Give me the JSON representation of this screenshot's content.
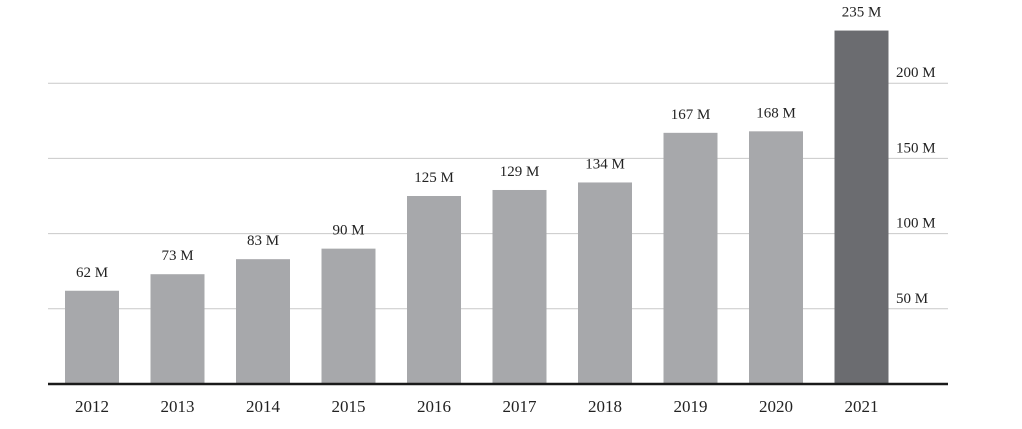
{
  "chart_data": {
    "type": "bar",
    "categories": [
      "2012",
      "2013",
      "2014",
      "2015",
      "2016",
      "2017",
      "2018",
      "2019",
      "2020",
      "2021"
    ],
    "values": [
      62,
      73,
      83,
      90,
      125,
      129,
      134,
      167,
      168,
      235
    ],
    "value_labels": [
      "62 M",
      "73 M",
      "83 M",
      "90 M",
      "125 M",
      "129 M",
      "134 M",
      "167 M",
      "168 M",
      "235 M"
    ],
    "title": "",
    "xlabel": "",
    "ylabel": "",
    "ylim": [
      0,
      250
    ],
    "yticks": [
      50,
      100,
      150,
      200
    ],
    "ytick_labels": [
      "50 M",
      "100 M",
      "150 M",
      "200 M"
    ],
    "y_axis_position": "right",
    "grid": true,
    "highlighted_category": "2021",
    "colors": {
      "bar": "#a7a8ab",
      "highlight": "#6b6c70",
      "grid": "#c9c9c9",
      "axis": "#1a1a1a",
      "text": "#222222"
    }
  }
}
